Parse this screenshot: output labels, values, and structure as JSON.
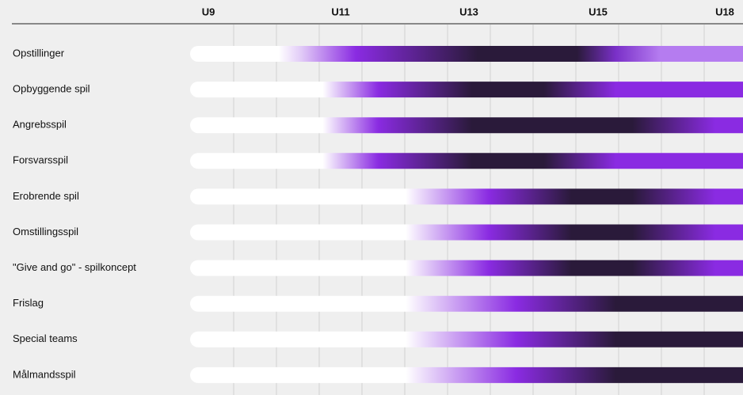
{
  "columns": [
    "U9",
    "U11",
    "U13",
    "U15",
    "U18"
  ],
  "rows": [
    "Opstillinger",
    "Opbyggende spil",
    "Angrebsspil",
    "Forsvarsspil",
    "Erobrende spil",
    "Omstillingsspil",
    "\"Give and go\" - spilkoncept",
    "Frislag",
    "Special teams",
    "Målmandsspil"
  ]
}
